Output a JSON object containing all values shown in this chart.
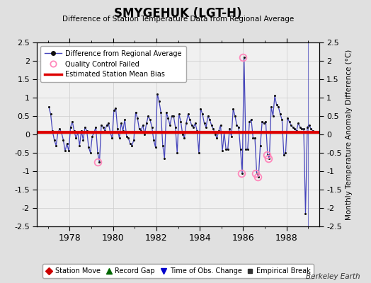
{
  "title": "SMYGEHUK (LGT-H)",
  "subtitle": "Difference of Station Temperature Data from Regional Average",
  "ylabel": "Monthly Temperature Anomaly Difference (°C)",
  "xlim": [
    1976.5,
    1989.5
  ],
  "ylim": [
    -2.5,
    2.5
  ],
  "bias_value": 0.05,
  "fig_bg_color": "#e0e0e0",
  "plot_bg_color": "#f0f0f0",
  "line_color": "#4444bb",
  "marker_color": "#111111",
  "bias_color": "#dd0000",
  "qc_color": "#ff88bb",
  "watermark": "Berkeley Earth",
  "monthly_data": [
    {
      "year": 1977,
      "month": 1,
      "val": 0.75
    },
    {
      "year": 1977,
      "month": 2,
      "val": 0.55
    },
    {
      "year": 1977,
      "month": 3,
      "val": 0.1
    },
    {
      "year": 1977,
      "month": 4,
      "val": -0.15
    },
    {
      "year": 1977,
      "month": 5,
      "val": -0.3
    },
    {
      "year": 1977,
      "month": 6,
      "val": 0.05
    },
    {
      "year": 1977,
      "month": 7,
      "val": 0.15
    },
    {
      "year": 1977,
      "month": 8,
      "val": 0.05
    },
    {
      "year": 1977,
      "month": 9,
      "val": -0.15
    },
    {
      "year": 1977,
      "month": 10,
      "val": -0.45
    },
    {
      "year": 1977,
      "month": 11,
      "val": -0.25
    },
    {
      "year": 1977,
      "month": 12,
      "val": -0.45
    },
    {
      "year": 1978,
      "month": 1,
      "val": 0.2
    },
    {
      "year": 1978,
      "month": 2,
      "val": 0.35
    },
    {
      "year": 1978,
      "month": 3,
      "val": 0.1
    },
    {
      "year": 1978,
      "month": 4,
      "val": -0.1
    },
    {
      "year": 1978,
      "month": 5,
      "val": 0.05
    },
    {
      "year": 1978,
      "month": 6,
      "val": -0.3
    },
    {
      "year": 1978,
      "month": 7,
      "val": 0.1
    },
    {
      "year": 1978,
      "month": 8,
      "val": -0.15
    },
    {
      "year": 1978,
      "month": 9,
      "val": 0.2
    },
    {
      "year": 1978,
      "month": 10,
      "val": 0.1
    },
    {
      "year": 1978,
      "month": 11,
      "val": -0.35
    },
    {
      "year": 1978,
      "month": 12,
      "val": -0.5
    },
    {
      "year": 1979,
      "month": 1,
      "val": -0.05
    },
    {
      "year": 1979,
      "month": 2,
      "val": 0.05
    },
    {
      "year": 1979,
      "month": 3,
      "val": 0.2
    },
    {
      "year": 1979,
      "month": 4,
      "val": -0.5
    },
    {
      "year": 1979,
      "month": 5,
      "val": -0.75
    },
    {
      "year": 1979,
      "month": 6,
      "val": 0.25
    },
    {
      "year": 1979,
      "month": 7,
      "val": 0.2
    },
    {
      "year": 1979,
      "month": 8,
      "val": 0.1
    },
    {
      "year": 1979,
      "month": 9,
      "val": 0.25
    },
    {
      "year": 1979,
      "month": 10,
      "val": 0.3
    },
    {
      "year": 1979,
      "month": 11,
      "val": 0.05
    },
    {
      "year": 1979,
      "month": 12,
      "val": -0.1
    },
    {
      "year": 1980,
      "month": 1,
      "val": 0.65
    },
    {
      "year": 1980,
      "month": 2,
      "val": 0.72
    },
    {
      "year": 1980,
      "month": 3,
      "val": 0.15
    },
    {
      "year": 1980,
      "month": 4,
      "val": -0.1
    },
    {
      "year": 1980,
      "month": 5,
      "val": 0.3
    },
    {
      "year": 1980,
      "month": 6,
      "val": 0.1
    },
    {
      "year": 1980,
      "month": 7,
      "val": 0.4
    },
    {
      "year": 1980,
      "month": 8,
      "val": -0.05
    },
    {
      "year": 1980,
      "month": 9,
      "val": -0.1
    },
    {
      "year": 1980,
      "month": 10,
      "val": -0.25
    },
    {
      "year": 1980,
      "month": 11,
      "val": -0.3
    },
    {
      "year": 1980,
      "month": 12,
      "val": -0.15
    },
    {
      "year": 1981,
      "month": 1,
      "val": 0.6
    },
    {
      "year": 1981,
      "month": 2,
      "val": 0.45
    },
    {
      "year": 1981,
      "month": 3,
      "val": 0.15
    },
    {
      "year": 1981,
      "month": 4,
      "val": 0.1
    },
    {
      "year": 1981,
      "month": 5,
      "val": 0.25
    },
    {
      "year": 1981,
      "month": 6,
      "val": 0.0
    },
    {
      "year": 1981,
      "month": 7,
      "val": 0.3
    },
    {
      "year": 1981,
      "month": 8,
      "val": 0.5
    },
    {
      "year": 1981,
      "month": 9,
      "val": 0.4
    },
    {
      "year": 1981,
      "month": 10,
      "val": 0.2
    },
    {
      "year": 1981,
      "month": 11,
      "val": -0.15
    },
    {
      "year": 1981,
      "month": 12,
      "val": -0.35
    },
    {
      "year": 1982,
      "month": 1,
      "val": 1.1
    },
    {
      "year": 1982,
      "month": 2,
      "val": 0.9
    },
    {
      "year": 1982,
      "month": 3,
      "val": 0.6
    },
    {
      "year": 1982,
      "month": 4,
      "val": -0.3
    },
    {
      "year": 1982,
      "month": 5,
      "val": -0.65
    },
    {
      "year": 1982,
      "month": 6,
      "val": 0.6
    },
    {
      "year": 1982,
      "month": 7,
      "val": 0.45
    },
    {
      "year": 1982,
      "month": 8,
      "val": 0.25
    },
    {
      "year": 1982,
      "month": 9,
      "val": 0.5
    },
    {
      "year": 1982,
      "month": 10,
      "val": 0.5
    },
    {
      "year": 1982,
      "month": 11,
      "val": 0.2
    },
    {
      "year": 1982,
      "month": 12,
      "val": -0.5
    },
    {
      "year": 1983,
      "month": 1,
      "val": 0.55
    },
    {
      "year": 1983,
      "month": 2,
      "val": 0.35
    },
    {
      "year": 1983,
      "month": 3,
      "val": 0.0
    },
    {
      "year": 1983,
      "month": 4,
      "val": -0.1
    },
    {
      "year": 1983,
      "month": 5,
      "val": 0.3
    },
    {
      "year": 1983,
      "month": 6,
      "val": 0.55
    },
    {
      "year": 1983,
      "month": 7,
      "val": 0.4
    },
    {
      "year": 1983,
      "month": 8,
      "val": 0.25
    },
    {
      "year": 1983,
      "month": 9,
      "val": 0.2
    },
    {
      "year": 1983,
      "month": 10,
      "val": 0.3
    },
    {
      "year": 1983,
      "month": 11,
      "val": 0.1
    },
    {
      "year": 1983,
      "month": 12,
      "val": -0.5
    },
    {
      "year": 1984,
      "month": 1,
      "val": 0.7
    },
    {
      "year": 1984,
      "month": 2,
      "val": 0.55
    },
    {
      "year": 1984,
      "month": 3,
      "val": 0.3
    },
    {
      "year": 1984,
      "month": 4,
      "val": 0.2
    },
    {
      "year": 1984,
      "month": 5,
      "val": 0.5
    },
    {
      "year": 1984,
      "month": 6,
      "val": 0.4
    },
    {
      "year": 1984,
      "month": 7,
      "val": 0.25
    },
    {
      "year": 1984,
      "month": 8,
      "val": 0.15
    },
    {
      "year": 1984,
      "month": 9,
      "val": 0.0
    },
    {
      "year": 1984,
      "month": 10,
      "val": -0.1
    },
    {
      "year": 1984,
      "month": 11,
      "val": 0.1
    },
    {
      "year": 1984,
      "month": 12,
      "val": 0.25
    },
    {
      "year": 1985,
      "month": 1,
      "val": -0.45
    },
    {
      "year": 1985,
      "month": 2,
      "val": 0.05
    },
    {
      "year": 1985,
      "month": 3,
      "val": -0.4
    },
    {
      "year": 1985,
      "month": 4,
      "val": -0.4
    },
    {
      "year": 1985,
      "month": 5,
      "val": 0.15
    },
    {
      "year": 1985,
      "month": 6,
      "val": -0.05
    },
    {
      "year": 1985,
      "month": 7,
      "val": 0.7
    },
    {
      "year": 1985,
      "month": 8,
      "val": 0.5
    },
    {
      "year": 1985,
      "month": 9,
      "val": 0.25
    },
    {
      "year": 1985,
      "month": 10,
      "val": 0.2
    },
    {
      "year": 1985,
      "month": 11,
      "val": -0.4
    },
    {
      "year": 1985,
      "month": 12,
      "val": -1.05
    },
    {
      "year": 1986,
      "month": 1,
      "val": 2.1
    },
    {
      "year": 1986,
      "month": 2,
      "val": -0.4
    },
    {
      "year": 1986,
      "month": 3,
      "val": -0.4
    },
    {
      "year": 1986,
      "month": 4,
      "val": 0.35
    },
    {
      "year": 1986,
      "month": 5,
      "val": 0.4
    },
    {
      "year": 1986,
      "month": 6,
      "val": -0.1
    },
    {
      "year": 1986,
      "month": 7,
      "val": -0.1
    },
    {
      "year": 1986,
      "month": 8,
      "val": -1.05
    },
    {
      "year": 1986,
      "month": 9,
      "val": -1.15
    },
    {
      "year": 1986,
      "month": 10,
      "val": -0.3
    },
    {
      "year": 1986,
      "month": 11,
      "val": 0.35
    },
    {
      "year": 1986,
      "month": 12,
      "val": 0.3
    },
    {
      "year": 1987,
      "month": 1,
      "val": 0.35
    },
    {
      "year": 1987,
      "month": 2,
      "val": -0.55
    },
    {
      "year": 1987,
      "month": 3,
      "val": -0.65
    },
    {
      "year": 1987,
      "month": 4,
      "val": 0.75
    },
    {
      "year": 1987,
      "month": 5,
      "val": 0.5
    },
    {
      "year": 1987,
      "month": 6,
      "val": 1.05
    },
    {
      "year": 1987,
      "month": 7,
      "val": 0.8
    },
    {
      "year": 1987,
      "month": 8,
      "val": 0.75
    },
    {
      "year": 1987,
      "month": 9,
      "val": 0.55
    },
    {
      "year": 1987,
      "month": 10,
      "val": 0.4
    },
    {
      "year": 1987,
      "month": 11,
      "val": -0.55
    },
    {
      "year": 1987,
      "month": 12,
      "val": -0.5
    },
    {
      "year": 1988,
      "month": 1,
      "val": 0.45
    },
    {
      "year": 1988,
      "month": 2,
      "val": 0.35
    },
    {
      "year": 1988,
      "month": 3,
      "val": 0.25
    },
    {
      "year": 1988,
      "month": 4,
      "val": 0.2
    },
    {
      "year": 1988,
      "month": 5,
      "val": 0.15
    },
    {
      "year": 1988,
      "month": 6,
      "val": 0.1
    },
    {
      "year": 1988,
      "month": 7,
      "val": 0.3
    },
    {
      "year": 1988,
      "month": 8,
      "val": 0.2
    },
    {
      "year": 1988,
      "month": 9,
      "val": 0.15
    },
    {
      "year": 1988,
      "month": 10,
      "val": 0.15
    },
    {
      "year": 1988,
      "month": 11,
      "val": -2.15
    },
    {
      "year": 1988,
      "month": 12,
      "val": 0.2
    },
    {
      "year": 1989,
      "month": 1,
      "val": 0.25
    },
    {
      "year": 1989,
      "month": 2,
      "val": 0.15
    },
    {
      "year": 1989,
      "month": 3,
      "val": 0.1
    }
  ],
  "qc_failed": [
    {
      "t": 1979.29,
      "v": -0.75
    },
    {
      "t": 1985.92,
      "v": -1.05
    },
    {
      "t": 1986.0,
      "v": 2.1
    },
    {
      "t": 1986.58,
      "v": -1.05
    },
    {
      "t": 1986.67,
      "v": -1.15
    },
    {
      "t": 1987.08,
      "v": -0.55
    },
    {
      "t": 1987.17,
      "v": -0.65
    }
  ],
  "vertical_line_x": 1989.0,
  "xticks": [
    1978,
    1980,
    1982,
    1984,
    1986,
    1988
  ],
  "yticks": [
    -2.5,
    -2.0,
    -1.5,
    -1.0,
    -0.5,
    0.0,
    0.5,
    1.0,
    1.5,
    2.0,
    2.5
  ],
  "ytick_labels": [
    "-2.5",
    "-2",
    "-1.5",
    "-1",
    "-0.5",
    "0",
    "0.5",
    "1",
    "1.5",
    "2",
    "2.5"
  ]
}
